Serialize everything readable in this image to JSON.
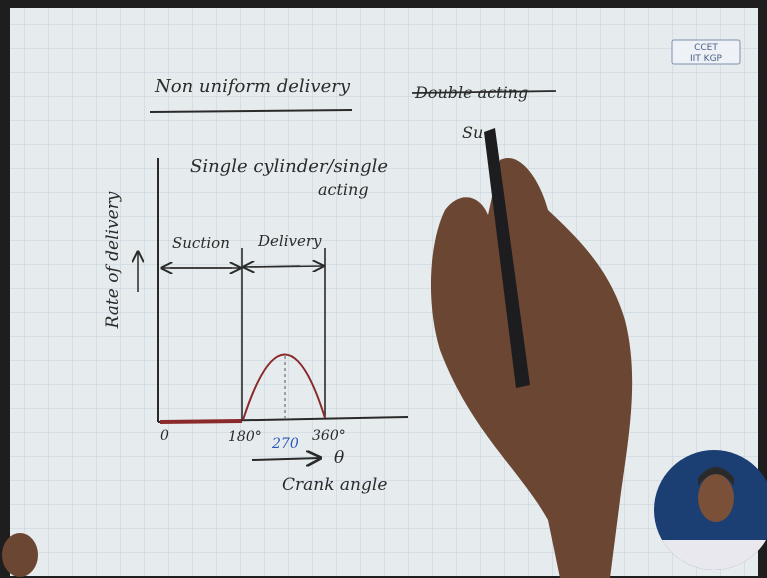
{
  "header": {
    "title": "Non uniform delivery",
    "logo_lines": [
      "CCET",
      "IIT KGP"
    ]
  },
  "notes": {
    "struck": "Double acting",
    "partial": "Su",
    "subtitle_line1": "Single cylinder/single",
    "subtitle_line2": "acting"
  },
  "sketch": {
    "y_label": "Rate of delivery",
    "x_label": "Crank angle",
    "x_symbol": "θ",
    "phases": [
      "Suction",
      "Delivery"
    ],
    "x_ticks": [
      "0",
      "180°",
      "270",
      "360°"
    ]
  }
}
